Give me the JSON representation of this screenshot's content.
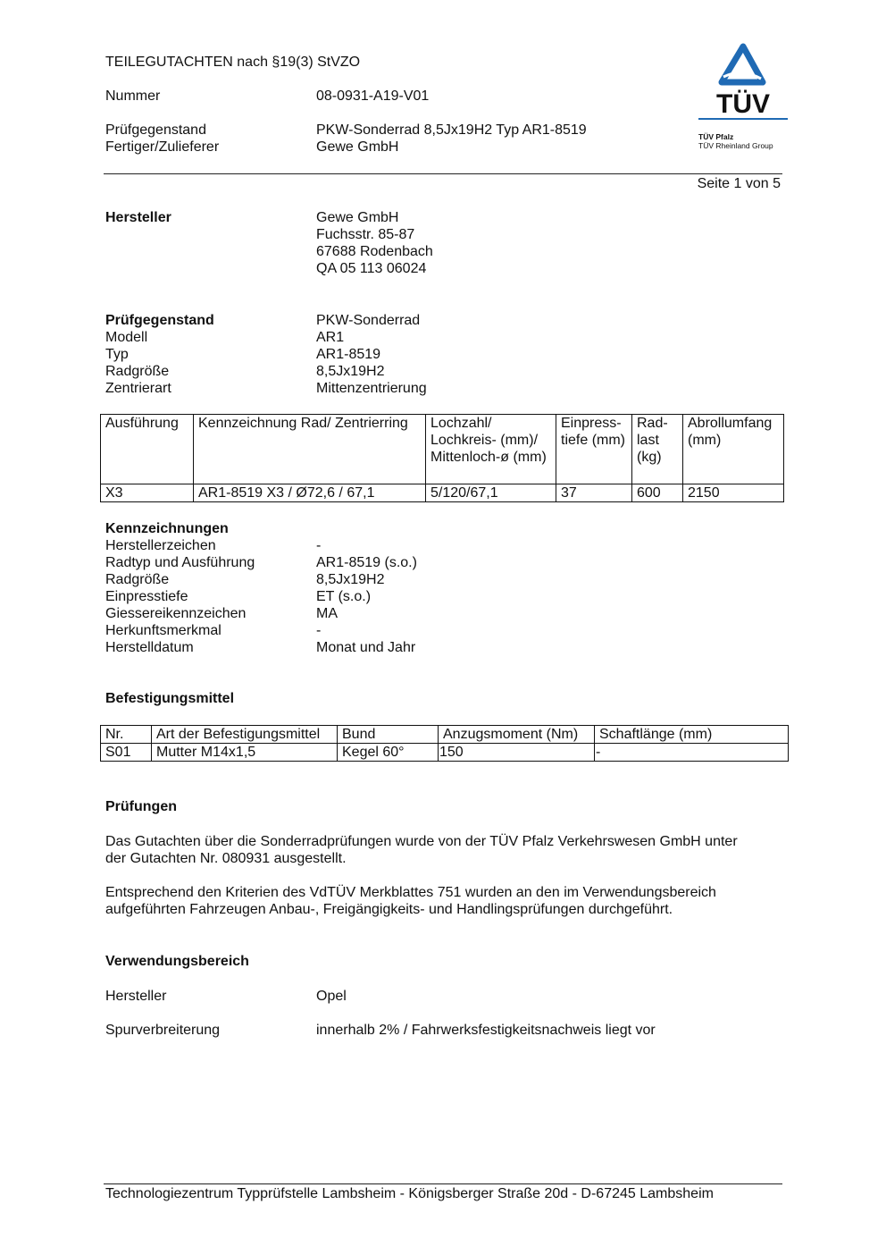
{
  "header": {
    "title": "TEILEGUTACHTEN nach §19(3) StVZO",
    "nummer_label": "Nummer",
    "nummer_value": "08-0931-A19-V01",
    "pruefgegenstand_label": "Prüfgegenstand",
    "pruefgegenstand_value": "PKW-Sonderrad 8,5Jx19H2 Typ AR1-8519",
    "fertiger_label": "Fertiger/Zulieferer",
    "fertiger_value": "Gewe GmbH",
    "page": "Seite 1 von 5",
    "logo": {
      "text": "TÜV",
      "line1": "TÜV Pfalz",
      "line2": "TÜV Rheinland Group",
      "color": "#1f6ab4"
    }
  },
  "hersteller": {
    "label": "Hersteller",
    "lines": [
      "Gewe GmbH",
      "Fuchsstr. 85-87",
      "67688 Rodenbach",
      "QA 05 113 06024"
    ]
  },
  "pruefgegenstand": {
    "rows": [
      {
        "label": "Prüfgegenstand",
        "value": "PKW-Sonderrad"
      },
      {
        "label": "Modell",
        "value": "AR1"
      },
      {
        "label": "Typ",
        "value": "AR1-8519"
      },
      {
        "label": "Radgröße",
        "value": "8,5Jx19H2"
      },
      {
        "label": "Zentrierart",
        "value": "Mittenzentrierung"
      }
    ]
  },
  "table1": {
    "headers": [
      "Ausführung",
      "Kennzeichnung Rad/ Zentrierring",
      "Lochzahl/ Lochkreis- (mm)/ Mittenloch-ø (mm)",
      "Einpress-tiefe (mm)",
      "Rad-last (kg)",
      "Abrollumfang (mm)"
    ],
    "rows": [
      [
        "X3",
        "AR1-8519 X3 / Ø72,6 / 67,1",
        "5/120/67,1",
        "37",
        "600",
        "2150"
      ]
    ]
  },
  "kennzeichnungen": {
    "title": "Kennzeichnungen",
    "rows": [
      {
        "label": "Herstellerzeichen",
        "value": "-"
      },
      {
        "label": "Radtyp und Ausführung",
        "value": "AR1-8519 (s.o.)"
      },
      {
        "label": "Radgröße",
        "value": "8,5Jx19H2"
      },
      {
        "label": "Einpresstiefe",
        "value": "ET (s.o.)"
      },
      {
        "label": "Giessereikennzeichen",
        "value": "MA"
      },
      {
        "label": "Herkunftsmerkmal",
        "value": "-"
      },
      {
        "label": "Herstelldatum",
        "value": "Monat und Jahr"
      }
    ]
  },
  "befestigung": {
    "title": "Befestigungsmittel",
    "headers": [
      "Nr.",
      "Art der Befestigungsmittel",
      "Bund",
      "Anzugsmoment (Nm)",
      "Schaftlänge (mm)"
    ],
    "rows": [
      [
        "S01",
        "Mutter M14x1,5",
        "Kegel 60°",
        "150",
        "-"
      ]
    ]
  },
  "pruefungen": {
    "title": "Prüfungen",
    "p1": [
      "Das Gutachten über die Sonderradprüfungen wurde von der TÜV Pfalz Verkehrswesen GmbH unter",
      "der Gutachten Nr. 080931 ausgestellt."
    ],
    "p2": [
      "Entsprechend den Kriterien des VdTÜV Merkblattes 751 wurden an den im Verwendungsbereich",
      "aufgeführten Fahrzeugen Anbau-, Freigängigkeits- und Handlingsprüfungen durchgeführt."
    ]
  },
  "verwendung": {
    "title": "Verwendungsbereich",
    "hersteller_label": "Hersteller",
    "hersteller_value": "Opel",
    "spur_label": "Spurverbreiterung",
    "spur_value": "innerhalb 2% / Fahrwerksfestigkeitsnachweis liegt vor"
  },
  "footer": "Technologiezentrum Typprüfstelle Lambsheim - Königsberger Straße 20d - D-67245 Lambsheim"
}
